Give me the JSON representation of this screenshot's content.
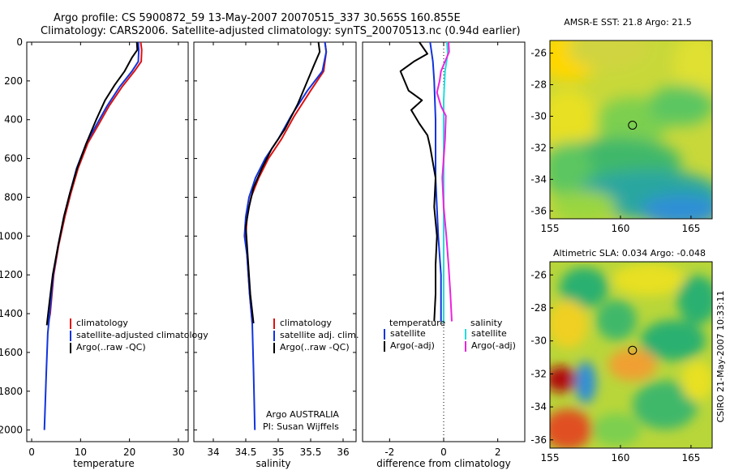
{
  "header": {
    "line1": "Argo profile: CS 5900872_59 13-May-2007 20070515_337 30.565S 160.855E",
    "line2": "Climatology: CARS2006. Satellite-adjusted climatology: synTS_20070513.nc (0.94d earlier)"
  },
  "footer": {
    "credit1": "Argo AUSTRALIA",
    "credit2": "PI: Susan Wijffels",
    "side_stamp": "CSIRO 21-May-2007 10:33:11"
  },
  "colors": {
    "climatology": "#dd1111",
    "satellite": "#1133dd",
    "argo": "#000000",
    "sal_satellite": "#22dddd",
    "sal_argo": "#ee22dd"
  },
  "chart_data": [
    {
      "type": "line",
      "id": "temperature",
      "xlabel": "temperature",
      "xlim": [
        -1,
        32
      ],
      "ylim": [
        2060,
        0
      ],
      "xticks": [
        0,
        10,
        20,
        30
      ],
      "yticks": [
        0,
        200,
        400,
        600,
        800,
        1000,
        1200,
        1400,
        1600,
        1800,
        2000
      ],
      "legend": [
        "climatology",
        "satellite-adjusted climatology",
        "Argo(..raw -QC)"
      ],
      "series": [
        {
          "name": "climatology",
          "color": "#dd1111",
          "points": [
            [
              22.3,
              0
            ],
            [
              22.5,
              40
            ],
            [
              22.4,
              100
            ],
            [
              21.0,
              150
            ],
            [
              18.5,
              230
            ],
            [
              15.8,
              330
            ],
            [
              13.8,
              420
            ],
            [
              11.5,
              520
            ],
            [
              9.5,
              650
            ],
            [
              8.0,
              780
            ],
            [
              6.8,
              900
            ],
            [
              5.5,
              1050
            ],
            [
              4.5,
              1200
            ],
            [
              3.8,
              1400
            ],
            [
              3.4,
              1450
            ]
          ]
        },
        {
          "name": "satellite",
          "color": "#1133dd",
          "points": [
            [
              21.8,
              0
            ],
            [
              21.9,
              40
            ],
            [
              21.8,
              100
            ],
            [
              20.5,
              150
            ],
            [
              18.0,
              230
            ],
            [
              15.4,
              330
            ],
            [
              13.4,
              420
            ],
            [
              11.2,
              520
            ],
            [
              9.2,
              650
            ],
            [
              7.8,
              780
            ],
            [
              6.6,
              900
            ],
            [
              5.4,
              1050
            ],
            [
              4.4,
              1200
            ],
            [
              3.7,
              1400
            ],
            [
              3.3,
              1500
            ],
            [
              3.0,
              1700
            ],
            [
              2.8,
              1850
            ],
            [
              2.6,
              2000
            ]
          ]
        },
        {
          "name": "argo",
          "color": "#000000",
          "points": [
            [
              21.5,
              0
            ],
            [
              21.6,
              40
            ],
            [
              20.5,
              80
            ],
            [
              19.0,
              150
            ],
            [
              17.0,
              220
            ],
            [
              15.0,
              300
            ],
            [
              13.2,
              400
            ],
            [
              11.2,
              520
            ],
            [
              9.3,
              650
            ],
            [
              7.8,
              780
            ],
            [
              6.6,
              900
            ],
            [
              5.4,
              1050
            ],
            [
              4.3,
              1200
            ],
            [
              3.6,
              1350
            ],
            [
              3.1,
              1460
            ]
          ]
        }
      ]
    },
    {
      "type": "line",
      "id": "salinity",
      "xlabel": "salinity",
      "xlim": [
        33.7,
        36.2
      ],
      "ylim": [
        2060,
        0
      ],
      "xticks": [
        34,
        34.5,
        35,
        35.5,
        36
      ],
      "legend": [
        "climatology",
        "satellite adj. clim.",
        "Argo(..raw -QC)"
      ],
      "series": [
        {
          "name": "climatology",
          "color": "#dd1111",
          "points": [
            [
              35.72,
              0
            ],
            [
              35.74,
              50
            ],
            [
              35.7,
              150
            ],
            [
              35.5,
              250
            ],
            [
              35.25,
              380
            ],
            [
              35.05,
              500
            ],
            [
              34.85,
              600
            ],
            [
              34.7,
              700
            ],
            [
              34.58,
              800
            ],
            [
              34.52,
              900
            ],
            [
              34.5,
              1000
            ],
            [
              34.52,
              1100
            ],
            [
              34.56,
              1300
            ],
            [
              34.6,
              1450
            ]
          ]
        },
        {
          "name": "satellite",
          "color": "#1133dd",
          "points": [
            [
              35.72,
              0
            ],
            [
              35.74,
              50
            ],
            [
              35.68,
              150
            ],
            [
              35.45,
              250
            ],
            [
              35.2,
              380
            ],
            [
              35.0,
              500
            ],
            [
              34.8,
              600
            ],
            [
              34.65,
              700
            ],
            [
              34.55,
              800
            ],
            [
              34.5,
              900
            ],
            [
              34.48,
              1000
            ],
            [
              34.52,
              1100
            ],
            [
              34.56,
              1300
            ],
            [
              34.6,
              1450
            ],
            [
              34.62,
              1700
            ],
            [
              34.64,
              2000
            ]
          ]
        },
        {
          "name": "argo",
          "color": "#000000",
          "points": [
            [
              35.62,
              0
            ],
            [
              35.64,
              50
            ],
            [
              35.55,
              120
            ],
            [
              35.45,
              200
            ],
            [
              35.3,
              320
            ],
            [
              35.1,
              450
            ],
            [
              34.9,
              550
            ],
            [
              34.75,
              650
            ],
            [
              34.62,
              750
            ],
            [
              34.55,
              850
            ],
            [
              34.5,
              950
            ],
            [
              34.53,
              1100
            ],
            [
              34.57,
              1300
            ],
            [
              34.62,
              1450
            ]
          ]
        }
      ]
    },
    {
      "type": "line",
      "id": "difference",
      "xlabel": "difference from climatology",
      "xlim": [
        -3,
        3
      ],
      "ylim": [
        2060,
        0
      ],
      "xticks": [
        -2,
        0,
        2
      ],
      "legend_left_title": "temperature",
      "legend_right_title": "salinity",
      "legend": [
        "satellite",
        "Argo(-adj)",
        "satellite",
        "Argo(-adj)"
      ],
      "series": [
        {
          "name": "satellite",
          "color": "#1133dd",
          "points": [
            [
              -0.5,
              0
            ],
            [
              -0.4,
              100
            ],
            [
              -0.35,
              200
            ],
            [
              -0.3,
              400
            ],
            [
              -0.3,
              700
            ],
            [
              -0.2,
              1000
            ],
            [
              -0.1,
              1200
            ],
            [
              -0.1,
              1440
            ]
          ]
        },
        {
          "name": "Argo(-adj)",
          "color": "#000000",
          "points": [
            [
              -0.9,
              0
            ],
            [
              -0.6,
              60
            ],
            [
              -1.1,
              100
            ],
            [
              -1.6,
              150
            ],
            [
              -1.3,
              250
            ],
            [
              -0.8,
              300
            ],
            [
              -1.2,
              350
            ],
            [
              -0.9,
              420
            ],
            [
              -0.6,
              480
            ],
            [
              -0.5,
              540
            ],
            [
              -0.3,
              700
            ],
            [
              -0.35,
              850
            ],
            [
              -0.25,
              1000
            ],
            [
              -0.3,
              1150
            ],
            [
              -0.3,
              1300
            ],
            [
              -0.35,
              1440
            ]
          ]
        },
        {
          "name": "satellite",
          "color": "#22dddd",
          "points": [
            [
              0.12,
              0
            ],
            [
              0.15,
              60
            ],
            [
              0.05,
              150
            ],
            [
              0.0,
              300
            ],
            [
              0.0,
              1000
            ],
            [
              0.0,
              1450
            ]
          ]
        },
        {
          "name": "Argo(-adj)",
          "color": "#ee22dd",
          "points": [
            [
              0.18,
              0
            ],
            [
              0.2,
              50
            ],
            [
              0.05,
              100
            ],
            [
              -0.1,
              150
            ],
            [
              -0.15,
              200
            ],
            [
              -0.25,
              260
            ],
            [
              -0.1,
              330
            ],
            [
              0.08,
              380
            ],
            [
              0.05,
              500
            ],
            [
              -0.05,
              700
            ],
            [
              0.0,
              850
            ],
            [
              0.1,
              1000
            ],
            [
              0.18,
              1150
            ],
            [
              0.25,
              1300
            ],
            [
              0.3,
              1440
            ]
          ]
        }
      ]
    },
    {
      "type": "heatmap",
      "id": "sst-map",
      "title": "AMSR-E SST: 21.8 Argo: 21.5",
      "xlim": [
        155,
        166.5
      ],
      "ylim": [
        -36.5,
        -25.2
      ],
      "xticks": [
        155,
        160,
        165
      ],
      "yticks": [
        -26,
        -28,
        -30,
        -32,
        -34,
        -36
      ],
      "marker": [
        160.855,
        -30.565
      ]
    },
    {
      "type": "heatmap",
      "id": "sla-map",
      "title": "Altimetric SLA: 0.034 Argo: -0.048",
      "xlim": [
        155,
        166.5
      ],
      "ylim": [
        -36.5,
        -25.2
      ],
      "xticks": [
        155,
        160,
        165
      ],
      "yticks": [
        -26,
        -28,
        -30,
        -32,
        -34,
        -36
      ],
      "marker": [
        160.855,
        -30.565
      ]
    }
  ]
}
